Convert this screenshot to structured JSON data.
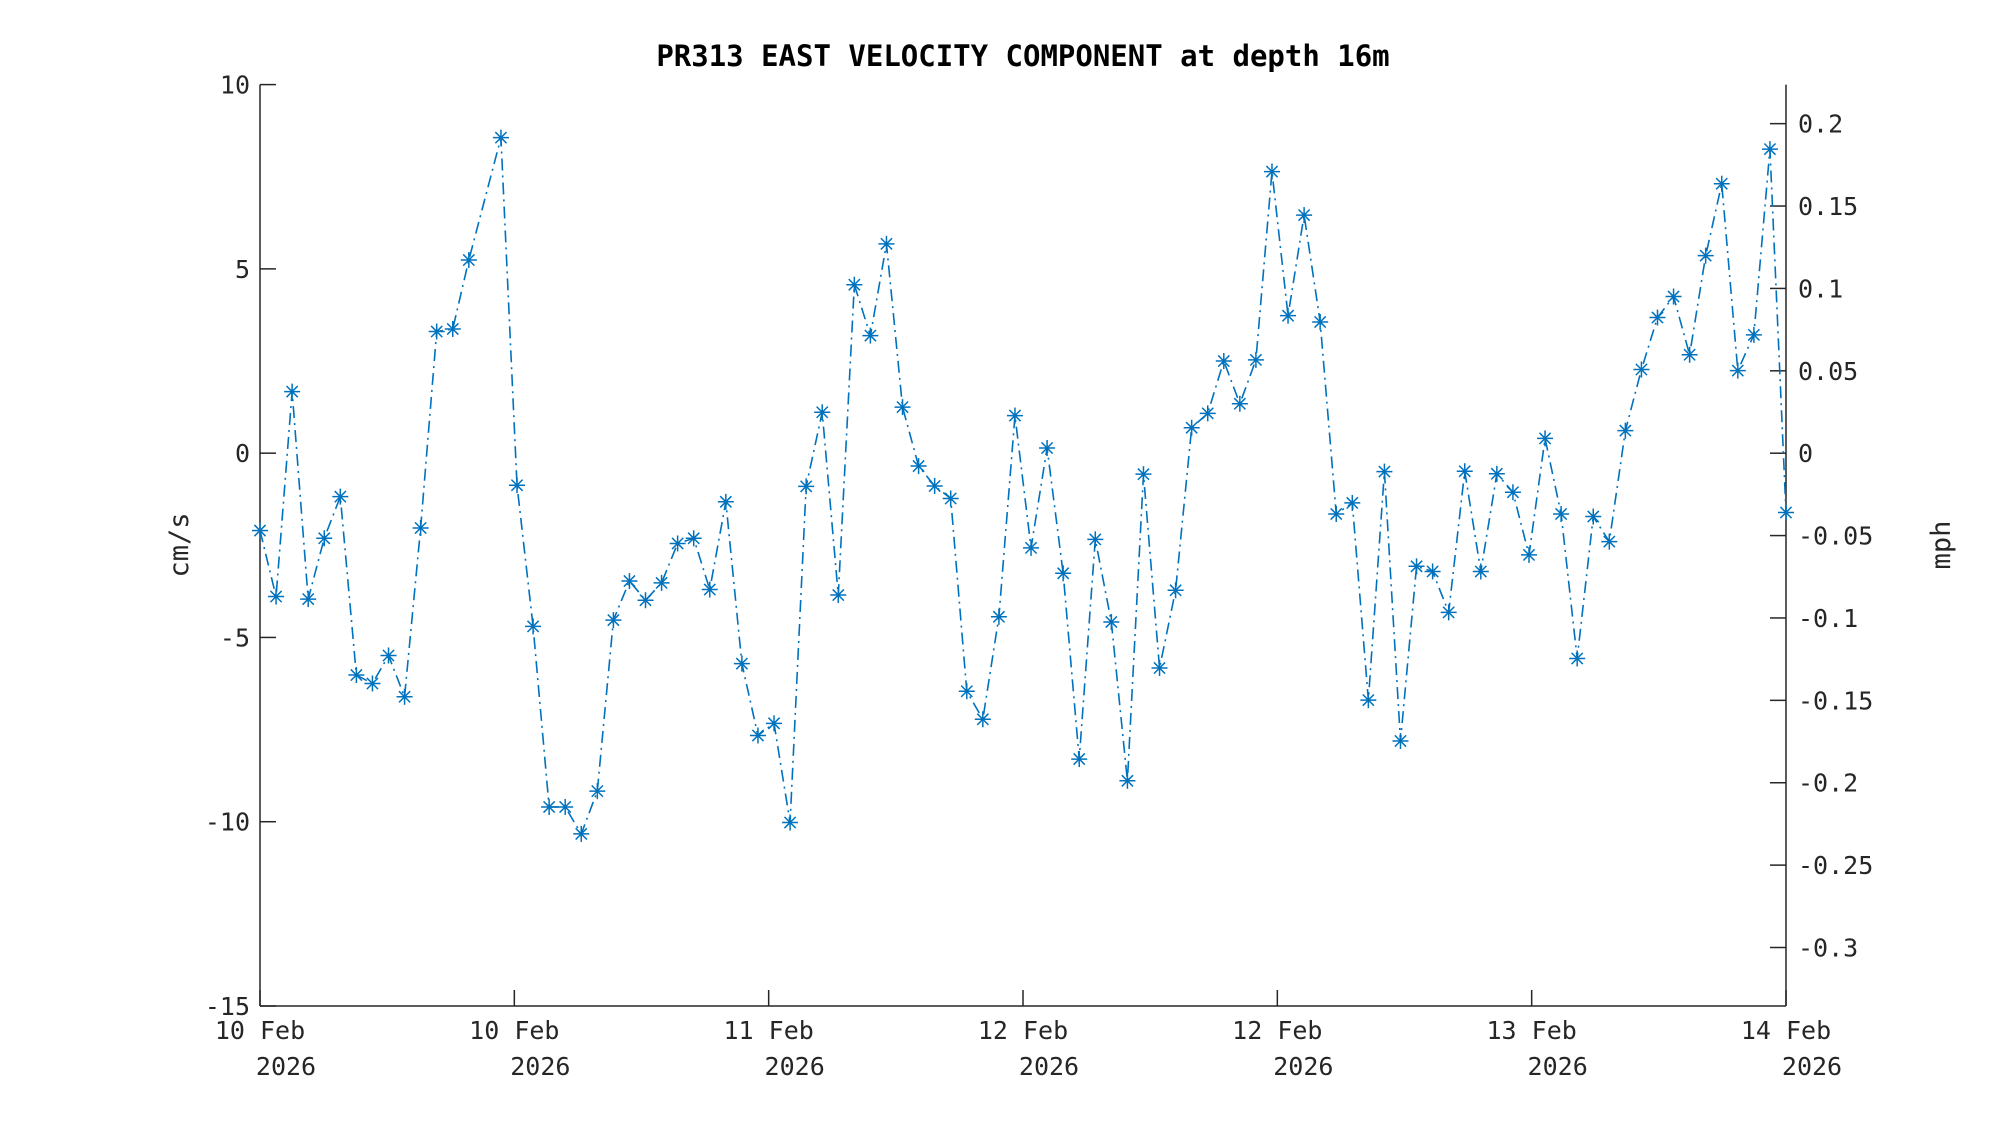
{
  "chart_data": {
    "type": "line",
    "title": "PR313 EAST VELOCITY COMPONENT at depth 16m",
    "ylabel": "cm/s",
    "ylabel_right": "mph",
    "ylim": [
      -15,
      10
    ],
    "ylim_right": [
      -0.3355,
      0.2237
    ],
    "yticks": [
      "10",
      "5",
      "0",
      "-5",
      "-10",
      "-15"
    ],
    "yticks_right": [
      "0.2",
      "0.15",
      "0.1",
      "0.05",
      "0",
      "-0.05",
      "-0.1",
      "-0.15",
      "-0.2",
      "-0.25",
      "-0.3"
    ],
    "xticks": [
      {
        "line1": "10 Feb",
        "line2": "2026"
      },
      {
        "line1": "10 Feb",
        "line2": "2026"
      },
      {
        "line1": "11 Feb",
        "line2": "2026"
      },
      {
        "line1": "12 Feb",
        "line2": "2026"
      },
      {
        "line1": "12 Feb",
        "line2": "2026"
      },
      {
        "line1": "13 Feb",
        "line2": "2026"
      },
      {
        "line1": "14 Feb",
        "line2": "2026"
      }
    ],
    "grid": false,
    "marker": "*",
    "line_style": "dash-dot",
    "color": "#0072BD",
    "x_start": "2026-02-10 00:00",
    "x_step": "1 hour",
    "values": [
      -2.1,
      -3.89,
      1.67,
      -3.96,
      -2.31,
      -1.18,
      -6.02,
      -6.25,
      -5.49,
      -6.61,
      -2.03,
      3.3,
      3.37,
      5.24,
      null,
      8.56,
      -0.87,
      -4.7,
      -9.6,
      -9.6,
      -10.33,
      -9.17,
      -4.53,
      -3.47,
      -3.99,
      -3.52,
      -2.45,
      -2.31,
      -3.7,
      -1.32,
      -5.71,
      -7.66,
      -7.33,
      -10.02,
      -0.9,
      1.11,
      -3.85,
      4.57,
      3.19,
      5.68,
      1.25,
      -0.35,
      -0.89,
      -1.23,
      -6.46,
      -7.22,
      -4.44,
      1.02,
      -2.57,
      0.14,
      -3.26,
      -8.3,
      -2.34,
      -4.58,
      -8.89,
      -0.57,
      -5.83,
      -3.72,
      0.69,
      1.08,
      2.5,
      1.34,
      2.53,
      7.64,
      3.73,
      6.46,
      3.56,
      -1.65,
      -1.35,
      -6.7,
      -0.5,
      -7.81,
      -3.07,
      -3.21,
      -4.32,
      -0.49,
      -3.21,
      -0.56,
      -1.06,
      -2.76,
      0.4,
      -1.65,
      -5.57,
      -1.72,
      -2.4,
      0.61,
      2.27,
      3.68,
      4.25,
      2.67,
      5.36,
      7.31,
      2.24,
      3.21,
      8.25,
      -1.61
    ]
  }
}
